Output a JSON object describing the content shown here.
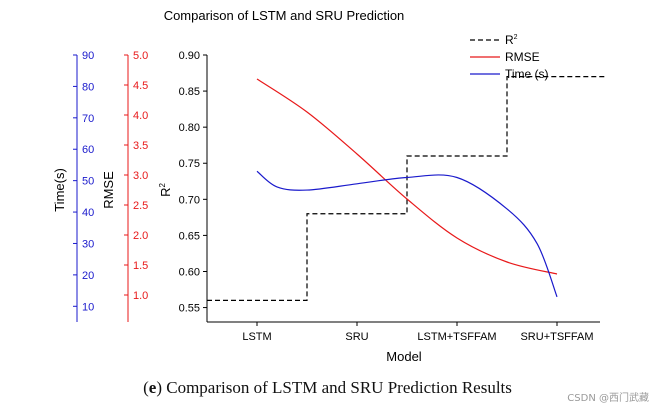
{
  "chart_data": {
    "type": "line",
    "title": "Comparison of LSTM and SRU Prediction",
    "xlabel": "Model",
    "categories": [
      "LSTM",
      "SRU",
      "LSTM+TSFFAM",
      "SRU+TSFFAM"
    ],
    "axes": {
      "r2": {
        "label": "R",
        "label_sup": "2",
        "lim": [
          0.53,
          0.9
        ],
        "ticks": [
          "0.55",
          "0.60",
          "0.65",
          "0.70",
          "0.75",
          "0.80",
          "0.85",
          "0.90"
        ],
        "color": "#000000"
      },
      "rmse": {
        "label": "RMSE",
        "lim": [
          0.55,
          5.0
        ],
        "ticks": [
          "1.0",
          "1.5",
          "2.0",
          "2.5",
          "3.0",
          "3.5",
          "4.0",
          "4.5",
          "5.0"
        ],
        "color": "#e8191a"
      },
      "time": {
        "label": "Time(s)",
        "lim": [
          5,
          90
        ],
        "ticks": [
          "10",
          "20",
          "30",
          "40",
          "50",
          "60",
          "70",
          "80",
          "90"
        ],
        "color": "#1a1acc"
      }
    },
    "series": [
      {
        "name": "R",
        "name_sup": "2",
        "axis": "r2",
        "style": "step-dashed",
        "color": "#000000",
        "x": [
          0,
          1,
          2,
          3
        ],
        "values": [
          0.56,
          0.68,
          0.76,
          0.87
        ]
      },
      {
        "name": "RMSE",
        "axis": "rmse",
        "style": "smooth",
        "color": "#e8191a",
        "x": [
          0,
          0.5,
          1,
          1.5,
          2,
          2.5,
          3
        ],
        "values": [
          4.6,
          4.05,
          3.35,
          2.6,
          1.95,
          1.55,
          1.35
        ]
      },
      {
        "name": "Time (s)",
        "axis": "time",
        "style": "smooth",
        "color": "#1a1acc",
        "x": [
          0,
          0.2,
          0.5,
          1,
          1.5,
          2,
          2.5,
          2.8,
          3
        ],
        "values": [
          53,
          48,
          47,
          49,
          51,
          51,
          41,
          30,
          13
        ]
      }
    ],
    "legend": {
      "position": "top-right"
    }
  },
  "caption": {
    "letter": "e",
    "text": " Comparison of LSTM and SRU Prediction Results"
  },
  "watermark": "CSDN @西门武藏"
}
